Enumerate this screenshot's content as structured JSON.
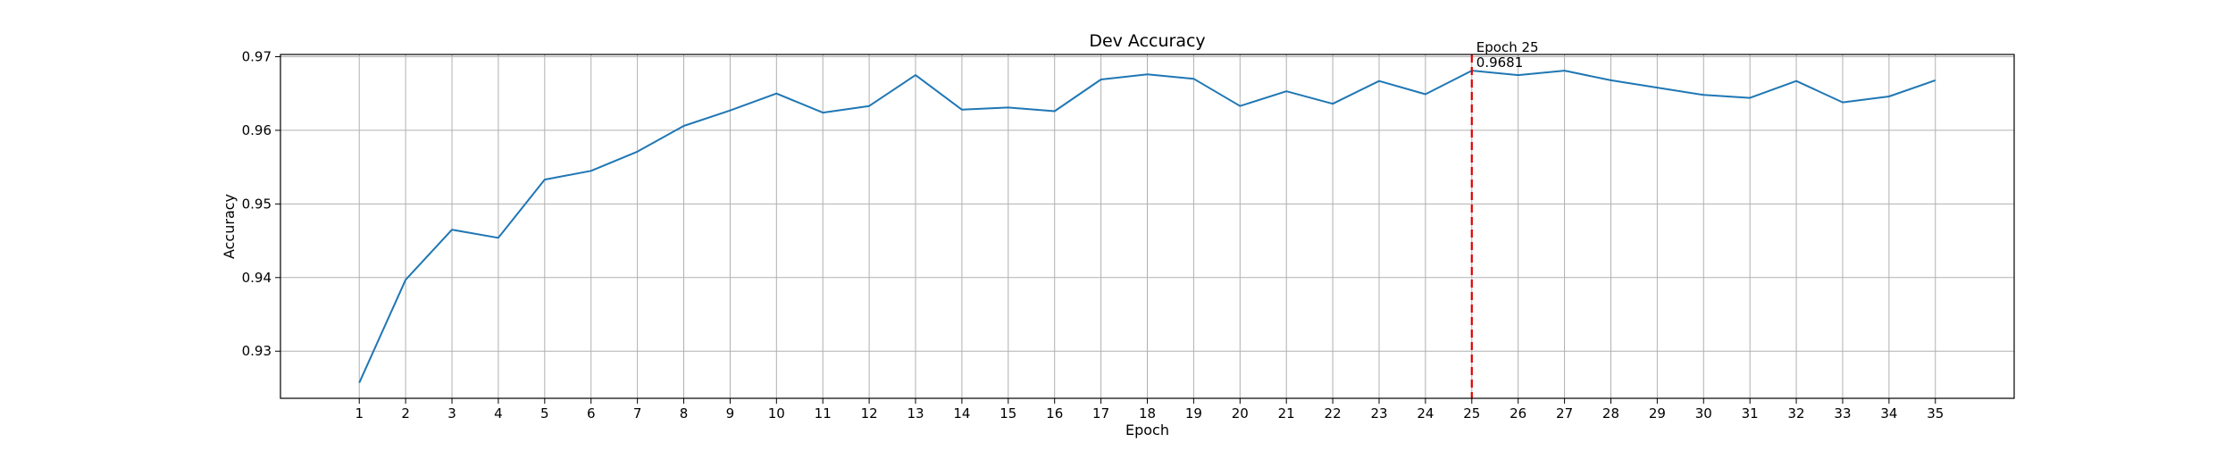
{
  "chart_data": {
    "type": "line",
    "title": "Dev Accuracy",
    "xlabel": "Epoch",
    "ylabel": "Accuracy",
    "x": [
      1,
      2,
      3,
      4,
      5,
      6,
      7,
      8,
      9,
      10,
      11,
      12,
      13,
      14,
      15,
      16,
      17,
      18,
      19,
      20,
      21,
      22,
      23,
      24,
      25,
      26,
      27,
      28,
      29,
      30,
      31,
      32,
      33,
      34,
      35
    ],
    "series": [
      {
        "values": [
          0.9257,
          0.9397,
          0.9465,
          0.9454,
          0.9533,
          0.9545,
          0.9571,
          0.9606,
          0.9627,
          0.965,
          0.9624,
          0.9633,
          0.9675,
          0.9628,
          0.9631,
          0.9626,
          0.9669,
          0.9676,
          0.967,
          0.9633,
          0.9653,
          0.9636,
          0.9667,
          0.9649,
          0.9681,
          0.9675,
          0.9681,
          0.9668,
          0.9658,
          0.9648,
          0.9644,
          0.9667,
          0.9638,
          0.9646,
          0.9668
        ],
        "color": "#1f77b4"
      }
    ],
    "xlim": [
      -0.7,
      36.7
    ],
    "ylim": [
      0.9236,
      0.9703
    ],
    "yticks": [
      "0.93",
      "0.94",
      "0.95",
      "0.96",
      "0.97"
    ],
    "ytick_values": [
      0.93,
      0.94,
      0.95,
      0.96,
      0.97
    ],
    "grid": true,
    "marker": {
      "x": 25,
      "color": "#e00000",
      "style": "dashed",
      "label_line1": "Epoch 25",
      "label_line2": "0.9681"
    }
  }
}
